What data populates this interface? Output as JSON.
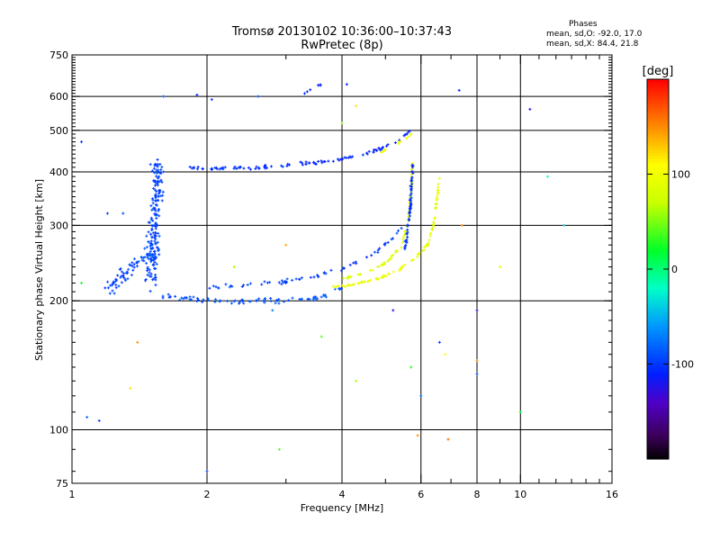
{
  "header": {
    "title_line1": "Tromsø 20130102 10:36:00–10:37:43",
    "title_line2": "RwPretec (8p)"
  },
  "phases": {
    "title": "Phases",
    "line_o": "mean, sd,O: -92.0, 17.0",
    "line_x": "mean, sd,X:  84.4, 21.8"
  },
  "colorbar": {
    "label": "[deg]",
    "range": [
      -200,
      200
    ],
    "ticks": [
      100,
      0,
      -100
    ],
    "tick_labels": [
      "100",
      "0",
      "-100"
    ]
  },
  "chart_data": {
    "type": "scatter",
    "xlabel": "Frequency [MHz]",
    "ylabel": "Stationary phase Virtual Height [km]",
    "x_scale": "log",
    "y_scale": "log",
    "xlim": [
      1,
      16
    ],
    "ylim": [
      75,
      750
    ],
    "xticks": [
      1,
      2,
      4,
      6,
      8,
      10,
      16
    ],
    "xtick_labels": [
      "1",
      "2",
      "4",
      "6",
      "8",
      "10",
      "16"
    ],
    "yticks": [
      75,
      100,
      200,
      300,
      400,
      500,
      600,
      750
    ],
    "ytick_labels": [
      "75",
      "100",
      "200",
      "300",
      "400",
      "500",
      "600",
      "750"
    ],
    "grid_x": [
      2,
      4,
      6,
      8,
      10
    ],
    "grid_y": [
      100,
      200,
      300,
      400,
      500,
      600
    ],
    "segments": [
      {
        "name": "",
        "f": [
          1.55,
          2.0,
          2.5,
          3.0,
          3.5,
          3.8,
          4.0
        ],
        "h": [
          205,
          200,
          200,
          200,
          203,
          210,
          215
        ],
        "jit": 0.06,
        "density": 12,
        "phase": [
          -90,
          -85
        ],
        "spread": 15
      },
      {
        "name": "",
        "f": [
          1.2,
          1.3,
          1.4,
          1.5,
          1.55
        ],
        "h": [
          210,
          230,
          245,
          260,
          250
        ],
        "jit": 0.18,
        "density": 30,
        "phase": [
          -95,
          -85
        ],
        "spread": 18
      },
      {
        "name": "",
        "f": [
          1.5,
          1.53,
          1.56
        ],
        "h": [
          220,
          300,
          420
        ],
        "jit": 0.3,
        "density": 40,
        "phase": [
          -95,
          -95
        ],
        "spread": 10
      },
      {
        "name": "",
        "f": [
          2.0,
          2.5,
          3.0,
          3.5,
          4.0,
          4.5,
          5.0,
          5.5
        ],
        "h": [
          215,
          218,
          222,
          228,
          238,
          250,
          270,
          300
        ],
        "jit": 0.04,
        "density": 8,
        "phase": [
          -95,
          -100
        ],
        "spread": 15
      },
      {
        "name": "",
        "f": [
          4.0,
          4.5,
          5.0,
          5.4,
          5.6,
          5.7,
          5.75
        ],
        "h": [
          225,
          232,
          245,
          265,
          300,
          360,
          430
        ],
        "jit": 0.03,
        "density": 12,
        "phase": [
          85,
          95
        ],
        "spread": 20
      },
      {
        "name": "",
        "f": [
          5.5,
          5.6,
          5.68,
          5.72,
          5.75
        ],
        "h": [
          260,
          290,
          330,
          380,
          420
        ],
        "jit": 0.04,
        "density": 18,
        "phase": [
          -100,
          -105
        ],
        "spread": 10
      },
      {
        "name": "",
        "f": [
          3.8,
          4.2,
          4.8,
          5.3,
          5.8,
          6.2,
          6.4,
          6.5,
          6.6
        ],
        "h": [
          215,
          218,
          225,
          235,
          250,
          270,
          300,
          340,
          390
        ],
        "jit": 0.03,
        "density": 14,
        "phase": [
          95,
          90
        ],
        "spread": 15
      },
      {
        "name": "",
        "f": [
          1.8,
          2.0,
          2.3,
          2.6,
          3.0,
          3.4,
          3.8,
          4.3,
          4.8,
          5.3,
          5.7
        ],
        "h": [
          410,
          405,
          410,
          410,
          415,
          420,
          425,
          435,
          450,
          470,
          500
        ],
        "jit": 0.04,
        "density": 12,
        "phase": [
          -100,
          -110
        ],
        "spread": 10
      },
      {
        "name": "",
        "f": [
          4.8,
          5.2,
          5.6,
          5.8
        ],
        "h": [
          440,
          460,
          480,
          500
        ],
        "jit": 0.03,
        "density": 8,
        "phase": [
          95,
          100
        ],
        "spread": 10
      },
      {
        "name": "",
        "f": [
          3.3,
          3.5,
          3.7
        ],
        "h": [
          610,
          630,
          650
        ],
        "jit": 0.02,
        "density": 6,
        "phase": [
          -110,
          -115
        ],
        "spread": 8
      }
    ],
    "scattered": [
      [
        1.05,
        470,
        -100
      ],
      [
        1.05,
        220,
        20
      ],
      [
        1.08,
        107,
        -80
      ],
      [
        1.15,
        105,
        -95
      ],
      [
        1.2,
        320,
        -95
      ],
      [
        1.3,
        320,
        -90
      ],
      [
        1.4,
        160,
        150
      ],
      [
        1.35,
        125,
        120
      ],
      [
        1.6,
        600,
        -80
      ],
      [
        1.9,
        605,
        -110
      ],
      [
        2.0,
        80,
        -90
      ],
      [
        2.05,
        590,
        -100
      ],
      [
        2.3,
        240,
        60
      ],
      [
        2.6,
        600,
        -90
      ],
      [
        2.8,
        190,
        -70
      ],
      [
        2.9,
        90,
        40
      ],
      [
        3.0,
        270,
        140
      ],
      [
        3.6,
        165,
        40
      ],
      [
        4.1,
        640,
        -110
      ],
      [
        4.0,
        520,
        50
      ],
      [
        4.3,
        130,
        60
      ],
      [
        4.3,
        570,
        120
      ],
      [
        5.2,
        190,
        -120
      ],
      [
        5.7,
        140,
        30
      ],
      [
        5.9,
        97,
        150
      ],
      [
        6.0,
        120,
        -70
      ],
      [
        6.6,
        160,
        -100
      ],
      [
        6.8,
        150,
        110
      ],
      [
        6.9,
        95,
        160
      ],
      [
        7.3,
        620,
        -110
      ],
      [
        7.4,
        300,
        150
      ],
      [
        8.0,
        190,
        -130
      ],
      [
        8.0,
        145,
        150
      ],
      [
        8.0,
        135,
        -90
      ],
      [
        9.0,
        240,
        90
      ],
      [
        10.5,
        560,
        -120
      ],
      [
        11.5,
        390,
        -20
      ],
      [
        12.5,
        300,
        -40
      ],
      [
        10.0,
        110,
        15
      ]
    ]
  }
}
